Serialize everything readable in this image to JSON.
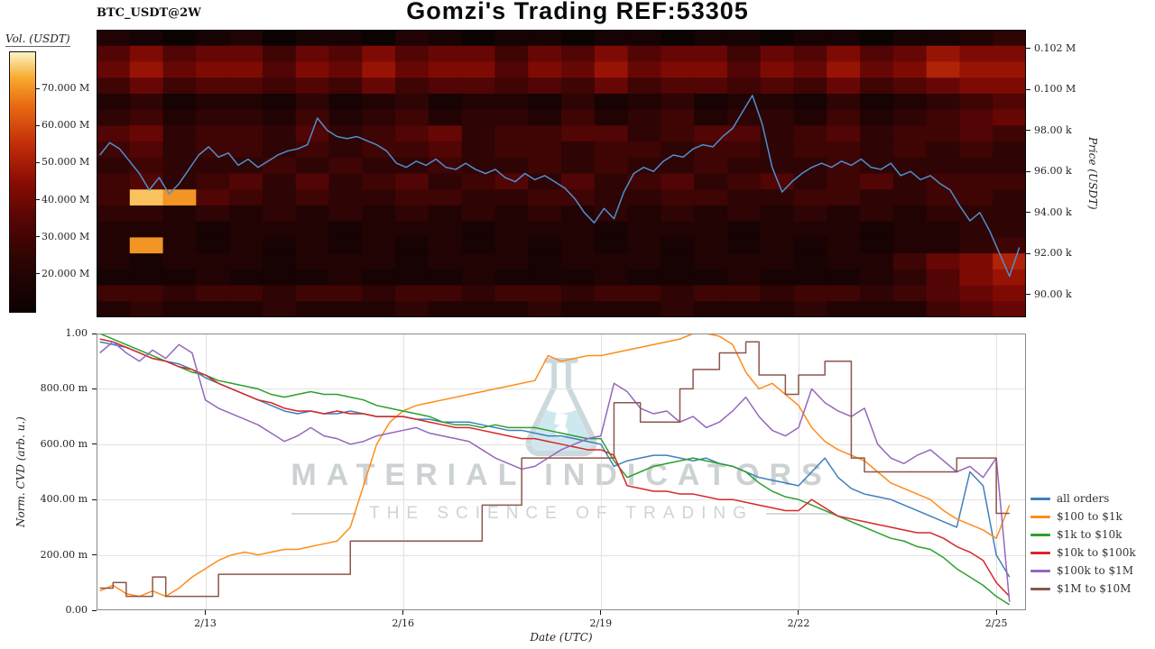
{
  "header": {
    "title": "Gomzi's Trading REF:53305",
    "symbol": "BTC_USDT@2W"
  },
  "watermark": {
    "line1": "MATERIAL INDICATORS",
    "line2": "THE SCIENCE OF TRADING"
  },
  "chart_data": [
    {
      "type": "heatmap",
      "colorbar_label": "Vol. (USDT)",
      "ylabel_right": "Price (USDT)",
      "colorbar_range": [
        10,
        80
      ],
      "colorbar_ticks": [
        {
          "label": "70.000 M",
          "value": 70
        },
        {
          "label": "60.000 M",
          "value": 60
        },
        {
          "label": "50.000 M",
          "value": 50
        },
        {
          "label": "40.000 M",
          "value": 40
        },
        {
          "label": "30.000 M",
          "value": 30
        },
        {
          "label": "20.000 M",
          "value": 20
        }
      ],
      "colormap_stops": [
        [
          0.0,
          "#0b0202"
        ],
        [
          0.2,
          "#2e0404"
        ],
        [
          0.35,
          "#550505"
        ],
        [
          0.5,
          "#8a0c04"
        ],
        [
          0.65,
          "#c42f08"
        ],
        [
          0.8,
          "#ea6d14"
        ],
        [
          0.9,
          "#f7a92d"
        ],
        [
          1.0,
          "#fdf3c4"
        ]
      ],
      "x_range_days": [
        11.35,
        25.45
      ],
      "price_range": [
        88.9,
        102.9
      ],
      "price_ticks": [
        {
          "label": "0.102 M",
          "value": 102
        },
        {
          "label": "0.100 M",
          "value": 100
        },
        {
          "label": "98.00 k",
          "value": 98
        },
        {
          "label": "96.00 k",
          "value": 96
        },
        {
          "label": "94.00 k",
          "value": 94
        },
        {
          "label": "92.00 k",
          "value": 92
        },
        {
          "label": "90.00 k",
          "value": 90
        }
      ],
      "rows": [
        "2101201102101101101101101123",
        "5756646575664657566465756877",
        "6867757686775768677576867988",
        "4645545464554546455454645677",
        "2312213123122131231221312345",
        "3423324234233242342332423456",
        "5634435345634455345534534454",
        "4534434344534434434434434343",
        "3433343433433434334333433333",
        "4534535345345353453453453444",
        "4ed5434334433443344334433443",
        "3323232323232323232323232333",
        "2221222122212221222122212233",
        "2d21212121212121212121212234",
        "2122212221222122212221224679",
        "1112111211121112111211123578",
        "4434434434434434434434434567",
        "2322232223222322232223222456"
      ],
      "price_line": {
        "color": "#4e8fd0",
        "x_start": 11.4,
        "x_step": 0.15,
        "y": [
          96.8,
          97.4,
          97.1,
          96.5,
          95.9,
          95.1,
          95.7,
          94.9,
          95.4,
          96.1,
          96.8,
          97.2,
          96.7,
          96.9,
          96.3,
          96.6,
          96.2,
          96.5,
          96.8,
          97.0,
          97.1,
          97.3,
          98.6,
          98.0,
          97.7,
          97.6,
          97.7,
          97.5,
          97.3,
          97.0,
          96.4,
          96.2,
          96.5,
          96.3,
          96.6,
          96.2,
          96.1,
          96.4,
          96.1,
          95.9,
          96.1,
          95.7,
          95.5,
          95.9,
          95.6,
          95.8,
          95.5,
          95.2,
          94.7,
          94.0,
          93.5,
          94.2,
          93.7,
          95.0,
          95.9,
          96.2,
          96.0,
          96.5,
          96.8,
          96.7,
          97.1,
          97.3,
          97.2,
          97.7,
          98.1,
          98.9,
          99.7,
          98.3,
          96.2,
          95.0,
          95.5,
          95.9,
          96.2,
          96.4,
          96.2,
          96.5,
          96.3,
          96.6,
          96.2,
          96.1,
          96.4,
          95.8,
          96.0,
          95.6,
          95.8,
          95.4,
          95.1,
          94.3,
          93.6,
          94.0,
          93.1,
          92.0,
          90.9,
          92.3
        ]
      }
    },
    {
      "type": "line",
      "xlabel": "Date (UTC)",
      "ylabel": "Norm. CVD (arb. u.)",
      "ylim": [
        0,
        1
      ],
      "x_range_days": [
        11.35,
        25.45
      ],
      "x_ticks": [
        {
          "label": "2/13",
          "value": 13
        },
        {
          "label": "2/16",
          "value": 16
        },
        {
          "label": "2/19",
          "value": 19
        },
        {
          "label": "2/22",
          "value": 22
        },
        {
          "label": "2/25",
          "value": 25
        }
      ],
      "y_ticks": [
        {
          "label": "1.00",
          "value": 1.0
        },
        {
          "label": "800.00 m",
          "value": 0.8
        },
        {
          "label": "600.00 m",
          "value": 0.6
        },
        {
          "label": "400.00 m",
          "value": 0.4
        },
        {
          "label": "200.00 m",
          "value": 0.2
        },
        {
          "label": "0.00",
          "value": 0.0
        }
      ],
      "x_start": 11.4,
      "x_step": 0.2,
      "series": [
        {
          "name": "all orders",
          "color": "#3f7fbf",
          "y": [
            0.97,
            0.96,
            0.95,
            0.93,
            0.91,
            0.9,
            0.89,
            0.87,
            0.84,
            0.82,
            0.8,
            0.78,
            0.76,
            0.74,
            0.72,
            0.71,
            0.72,
            0.71,
            0.71,
            0.72,
            0.71,
            0.7,
            0.7,
            0.7,
            0.69,
            0.69,
            0.68,
            0.68,
            0.68,
            0.67,
            0.66,
            0.65,
            0.65,
            0.64,
            0.63,
            0.63,
            0.62,
            0.61,
            0.6,
            0.52,
            0.54,
            0.55,
            0.56,
            0.56,
            0.55,
            0.54,
            0.55,
            0.53,
            0.52,
            0.5,
            0.48,
            0.47,
            0.46,
            0.45,
            0.5,
            0.55,
            0.48,
            0.44,
            0.42,
            0.41,
            0.4,
            0.38,
            0.36,
            0.34,
            0.32,
            0.3,
            0.5,
            0.45,
            0.2,
            0.12
          ]
        },
        {
          "name": "$100 to $1k",
          "color": "#ff8c1a",
          "y": [
            0.07,
            0.09,
            0.06,
            0.05,
            0.07,
            0.05,
            0.08,
            0.12,
            0.15,
            0.18,
            0.2,
            0.21,
            0.2,
            0.21,
            0.22,
            0.22,
            0.23,
            0.24,
            0.25,
            0.3,
            0.45,
            0.6,
            0.68,
            0.72,
            0.74,
            0.75,
            0.76,
            0.77,
            0.78,
            0.79,
            0.8,
            0.81,
            0.82,
            0.83,
            0.92,
            0.9,
            0.91,
            0.92,
            0.92,
            0.93,
            0.94,
            0.95,
            0.96,
            0.97,
            0.98,
            1.0,
            1.0,
            0.99,
            0.96,
            0.86,
            0.8,
            0.82,
            0.78,
            0.74,
            0.66,
            0.61,
            0.58,
            0.56,
            0.54,
            0.5,
            0.46,
            0.44,
            0.42,
            0.4,
            0.36,
            0.33,
            0.31,
            0.29,
            0.26,
            0.38
          ]
        },
        {
          "name": "$1k to $10k",
          "color": "#2ca02c",
          "y": [
            1.0,
            0.98,
            0.96,
            0.94,
            0.92,
            0.9,
            0.88,
            0.86,
            0.85,
            0.83,
            0.82,
            0.81,
            0.8,
            0.78,
            0.77,
            0.78,
            0.79,
            0.78,
            0.78,
            0.77,
            0.76,
            0.74,
            0.73,
            0.72,
            0.71,
            0.7,
            0.68,
            0.67,
            0.67,
            0.66,
            0.67,
            0.66,
            0.66,
            0.66,
            0.65,
            0.64,
            0.63,
            0.62,
            0.62,
            0.54,
            0.48,
            0.5,
            0.52,
            0.53,
            0.54,
            0.55,
            0.54,
            0.53,
            0.52,
            0.5,
            0.46,
            0.43,
            0.41,
            0.4,
            0.38,
            0.36,
            0.34,
            0.32,
            0.3,
            0.28,
            0.26,
            0.25,
            0.23,
            0.22,
            0.19,
            0.15,
            0.12,
            0.09,
            0.05,
            0.02
          ]
        },
        {
          "name": "$10k to $100k",
          "color": "#d62728",
          "y": [
            0.98,
            0.97,
            0.95,
            0.93,
            0.91,
            0.9,
            0.88,
            0.87,
            0.85,
            0.82,
            0.8,
            0.78,
            0.76,
            0.75,
            0.73,
            0.72,
            0.72,
            0.71,
            0.72,
            0.71,
            0.71,
            0.7,
            0.7,
            0.7,
            0.69,
            0.68,
            0.67,
            0.66,
            0.66,
            0.65,
            0.64,
            0.63,
            0.62,
            0.62,
            0.61,
            0.6,
            0.59,
            0.58,
            0.58,
            0.56,
            0.45,
            0.44,
            0.43,
            0.43,
            0.42,
            0.42,
            0.41,
            0.4,
            0.4,
            0.39,
            0.38,
            0.37,
            0.36,
            0.36,
            0.4,
            0.37,
            0.34,
            0.33,
            0.32,
            0.31,
            0.3,
            0.29,
            0.28,
            0.28,
            0.26,
            0.23,
            0.21,
            0.18,
            0.1,
            0.05
          ]
        },
        {
          "name": "$100k to $1M",
          "color": "#9467bd",
          "y": [
            0.93,
            0.97,
            0.93,
            0.9,
            0.94,
            0.91,
            0.96,
            0.93,
            0.76,
            0.73,
            0.71,
            0.69,
            0.67,
            0.64,
            0.61,
            0.63,
            0.66,
            0.63,
            0.62,
            0.6,
            0.61,
            0.63,
            0.64,
            0.65,
            0.66,
            0.64,
            0.63,
            0.62,
            0.61,
            0.58,
            0.55,
            0.53,
            0.51,
            0.52,
            0.55,
            0.58,
            0.6,
            0.62,
            0.63,
            0.82,
            0.79,
            0.73,
            0.71,
            0.72,
            0.68,
            0.7,
            0.66,
            0.68,
            0.72,
            0.77,
            0.7,
            0.65,
            0.63,
            0.66,
            0.8,
            0.75,
            0.72,
            0.7,
            0.73,
            0.6,
            0.55,
            0.53,
            0.56,
            0.58,
            0.54,
            0.5,
            0.52,
            0.48,
            0.55,
            0.03
          ]
        },
        {
          "name": "$1M to $10M",
          "color": "#8c564b",
          "step": true,
          "y": [
            0.08,
            0.1,
            0.05,
            0.05,
            0.12,
            0.05,
            0.05,
            0.05,
            0.05,
            0.13,
            0.13,
            0.13,
            0.13,
            0.13,
            0.13,
            0.13,
            0.13,
            0.13,
            0.13,
            0.25,
            0.25,
            0.25,
            0.25,
            0.25,
            0.25,
            0.25,
            0.25,
            0.25,
            0.25,
            0.38,
            0.38,
            0.38,
            0.55,
            0.55,
            0.55,
            0.55,
            0.55,
            0.55,
            0.55,
            0.75,
            0.75,
            0.68,
            0.68,
            0.68,
            0.8,
            0.87,
            0.87,
            0.93,
            0.93,
            0.97,
            0.85,
            0.85,
            0.78,
            0.85,
            0.85,
            0.9,
            0.9,
            0.55,
            0.5,
            0.5,
            0.5,
            0.5,
            0.5,
            0.5,
            0.5,
            0.55,
            0.55,
            0.55,
            0.35,
            0.35
          ]
        }
      ]
    }
  ]
}
